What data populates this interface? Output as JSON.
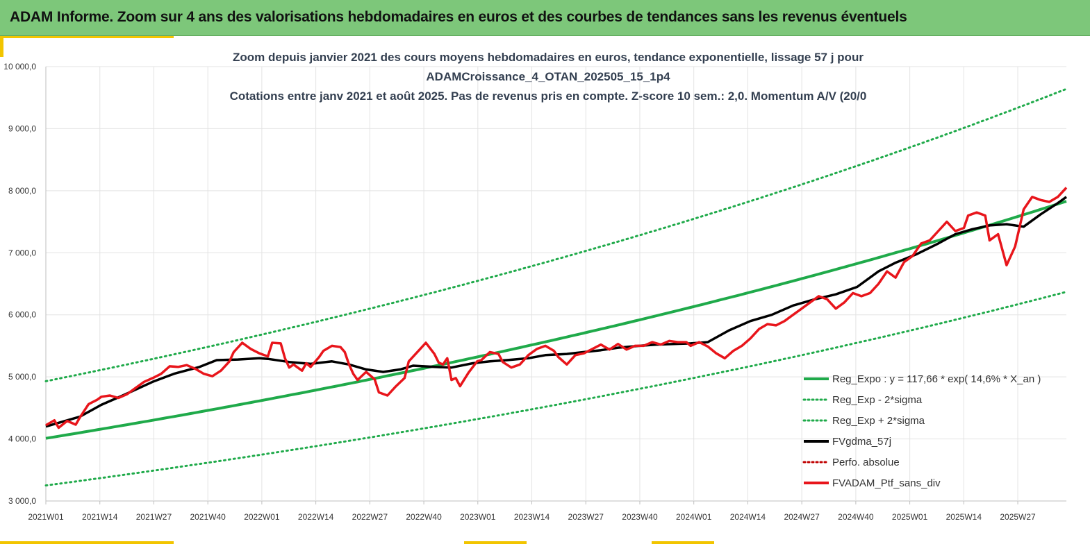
{
  "banner": {
    "title": "ADAM Informe. Zoom sur 4 ans des valorisations hebdomadaires en euros et des courbes de tendances sans les revenus éventuels"
  },
  "colors": {
    "banner_bg": "#7dc77a",
    "accent": "#f2c500",
    "trend_green": "#1faa4a",
    "sma_black": "#000000",
    "portfolio_red": "#e8151b",
    "perfo_red": "#c00000"
  },
  "chart_data": {
    "type": "line",
    "title_lines": [
      "Zoom depuis janvier 2021 des cours moyens hebdomadaires  en euros, tendance exponentielle, lissage 57 j pour",
      "ADAMCroissance_4_OTAN_202505_15_1p4",
      "Cotations entre janv 2021 et août 2025. Pas de revenus pris en compte. Z-score 10 sem.: 2,0. Momentum A/V (20/0"
    ],
    "x_axis": {
      "tick_labels": [
        "2021W01",
        "2021W14",
        "2021W27",
        "2021W40",
        "2022W01",
        "2022W14",
        "2022W27",
        "2022W40",
        "2023W01",
        "2023W14",
        "2023W27",
        "2023W40",
        "2024W01",
        "2024W14",
        "2024W27",
        "2024W40",
        "2025W01",
        "2025W14",
        "2025W27"
      ],
      "range_weeks": [
        0,
        239
      ]
    },
    "y_axis": {
      "min": 3000,
      "max": 10000,
      "step": 1000,
      "tick_labels": [
        "3 000,0",
        "4 000,0",
        "5 000,0",
        "6 000,0",
        "7 000,0",
        "8 000,0",
        "9 000,0",
        "10 000,0"
      ]
    },
    "grid": true,
    "legend_position": "bottom-right",
    "legend": [
      {
        "label": "Reg_Expo : y = 117,66 * exp( 14,6% *  X_an )",
        "color": "#1faa4a",
        "style": "solid"
      },
      {
        "label": "Reg_Exp - 2*sigma",
        "color": "#1faa4a",
        "style": "dotted"
      },
      {
        "label": "Reg_Exp + 2*sigma",
        "color": "#1faa4a",
        "style": "dotted"
      },
      {
        "label": "FVgdma_57j",
        "color": "#000000",
        "style": "solid"
      },
      {
        "label": "Perfo. absolue",
        "color": "#c00000",
        "style": "dotted"
      },
      {
        "label": "FVADAM_Ptf_sans_div",
        "color": "#e8151b",
        "style": "solid"
      }
    ],
    "series": {
      "regression": {
        "x": [
          0,
          239
        ],
        "y": [
          4010,
          7830
        ]
      },
      "upper_band": {
        "x": [
          0,
          239
        ],
        "y": [
          4930,
          9640
        ]
      },
      "lower_band": {
        "x": [
          0,
          239
        ],
        "y": [
          3250,
          6370
        ]
      },
      "sma_57j": {
        "x": [
          0,
          8,
          13,
          18,
          25,
          30,
          36,
          40,
          45,
          50,
          52,
          57,
          62,
          67,
          71,
          75,
          79,
          83,
          86,
          91,
          95,
          100,
          104,
          108,
          113,
          117,
          122,
          126,
          130,
          134,
          139,
          143,
          147,
          151,
          155,
          160,
          165,
          170,
          175,
          180,
          185,
          190,
          195,
          199,
          204,
          209,
          213,
          217,
          221,
          225,
          229,
          233,
          237,
          239
        ],
        "y": [
          4200,
          4360,
          4550,
          4700,
          4920,
          5050,
          5160,
          5270,
          5280,
          5300,
          5290,
          5240,
          5210,
          5250,
          5200,
          5120,
          5080,
          5120,
          5180,
          5160,
          5150,
          5220,
          5250,
          5270,
          5300,
          5350,
          5370,
          5400,
          5430,
          5470,
          5500,
          5520,
          5530,
          5540,
          5560,
          5750,
          5900,
          6000,
          6150,
          6250,
          6330,
          6450,
          6700,
          6840,
          6980,
          7150,
          7300,
          7380,
          7440,
          7460,
          7420,
          7620,
          7800,
          7900
        ]
      },
      "portfolio": {
        "x": [
          0,
          2,
          3,
          5,
          7,
          8,
          10,
          12,
          13,
          15,
          17,
          19,
          21,
          23,
          25,
          27,
          29,
          31,
          33,
          35,
          37,
          39,
          41,
          43,
          44,
          46,
          48,
          50,
          52,
          53,
          55,
          56,
          57,
          58,
          60,
          61,
          62,
          64,
          65,
          67,
          69,
          70,
          71,
          72,
          73,
          75,
          77,
          78,
          80,
          82,
          84,
          85,
          87,
          89,
          91,
          92,
          93,
          94,
          95,
          96,
          97,
          99,
          101,
          102,
          104,
          106,
          107,
          109,
          111,
          113,
          115,
          117,
          119,
          120,
          122,
          124,
          126,
          128,
          130,
          132,
          134,
          136,
          138,
          140,
          142,
          144,
          146,
          148,
          150,
          151,
          153,
          155,
          157,
          159,
          161,
          163,
          165,
          167,
          169,
          171,
          173,
          175,
          177,
          179,
          181,
          183,
          185,
          187,
          189,
          191,
          193,
          195,
          197,
          199,
          201,
          203,
          205,
          207,
          209,
          211,
          213,
          215,
          216,
          218,
          220,
          221,
          223,
          225,
          227,
          228,
          229,
          231,
          233,
          235,
          237,
          239
        ],
        "y": [
          4220,
          4300,
          4180,
          4290,
          4230,
          4350,
          4560,
          4630,
          4680,
          4700,
          4660,
          4720,
          4820,
          4920,
          4980,
          5050,
          5170,
          5160,
          5190,
          5130,
          5050,
          5010,
          5100,
          5250,
          5400,
          5550,
          5450,
          5380,
          5330,
          5550,
          5540,
          5300,
          5150,
          5200,
          5100,
          5220,
          5160,
          5320,
          5420,
          5500,
          5480,
          5400,
          5200,
          5050,
          4950,
          5080,
          4960,
          4750,
          4700,
          4850,
          4980,
          5250,
          5400,
          5550,
          5370,
          5230,
          5200,
          5300,
          4950,
          4980,
          4850,
          5070,
          5250,
          5270,
          5400,
          5370,
          5240,
          5150,
          5200,
          5350,
          5450,
          5500,
          5420,
          5320,
          5200,
          5350,
          5380,
          5450,
          5520,
          5440,
          5530,
          5440,
          5500,
          5500,
          5560,
          5520,
          5580,
          5560,
          5560,
          5500,
          5560,
          5490,
          5380,
          5300,
          5420,
          5500,
          5620,
          5770,
          5850,
          5830,
          5900,
          6000,
          6100,
          6200,
          6300,
          6250,
          6100,
          6200,
          6350,
          6300,
          6350,
          6500,
          6700,
          6600,
          6850,
          6950,
          7150,
          7200,
          7350,
          7500,
          7350,
          7400,
          7600,
          7650,
          7600,
          7200,
          7300,
          6800,
          7100,
          7400,
          7700,
          7900,
          7850,
          7820,
          7900,
          8050
        ]
      }
    }
  }
}
